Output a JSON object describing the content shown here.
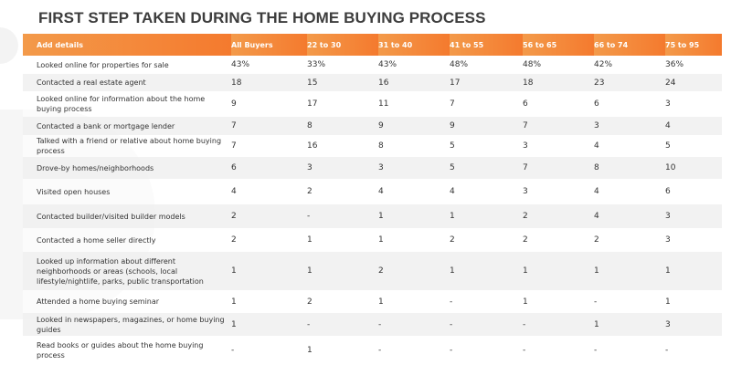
{
  "title": "FIRST STEP TAKEN DURING THE HOME BUYING PROCESS",
  "colors": {
    "header_start": "#f39a4a",
    "header_end": "#f47a2e",
    "stripe": "#f0f0f0"
  },
  "headers": [
    "Add details",
    "All Buyers",
    "22 to 30",
    "31 to 40",
    "41 to 55",
    "56 to 65",
    "66 to 74",
    "75 to 95"
  ],
  "rows": [
    {
      "label": "Looked online for properties for sale",
      "values": [
        "43%",
        "33%",
        "43%",
        "48%",
        "48%",
        "42%",
        "36%"
      ]
    },
    {
      "label": "Contacted a real estate agent",
      "values": [
        "18",
        "15",
        "16",
        "17",
        "18",
        "23",
        "24"
      ]
    },
    {
      "label": "Looked online for information about the home buying process",
      "values": [
        "9",
        "17",
        "11",
        "7",
        "6",
        "6",
        "3"
      ]
    },
    {
      "label": "Contacted a bank or mortgage lender",
      "values": [
        "7",
        "8",
        "9",
        "9",
        "7",
        "3",
        "4"
      ]
    },
    {
      "label": "Talked with a friend or relative about home buying process",
      "values": [
        "7",
        "16",
        "8",
        "5",
        "3",
        "4",
        "5"
      ]
    },
    {
      "label": "Drove-by homes/neighborhoods",
      "values": [
        "6",
        "3",
        "3",
        "5",
        "7",
        "8",
        "10"
      ]
    },
    {
      "label": "Visited open houses",
      "values": [
        "4",
        "2",
        "4",
        "4",
        "3",
        "4",
        "6"
      ]
    },
    {
      "label": "Contacted builder/visited builder models",
      "values": [
        "2",
        "-",
        "1",
        "1",
        "2",
        "4",
        "3"
      ]
    },
    {
      "label": "Contacted a home seller directly",
      "values": [
        "2",
        "1",
        "1",
        "2",
        "2",
        "2",
        "3"
      ]
    },
    {
      "label": "Looked up information about different neighborhoods or areas (schools, local lifestyle/nightlife, parks, public transportation",
      "values": [
        "1",
        "1",
        "2",
        "1",
        "1",
        "1",
        "1"
      ]
    },
    {
      "label": "Attended a home buying seminar",
      "values": [
        "1",
        "2",
        "1",
        "-",
        "1",
        "-",
        "1"
      ]
    },
    {
      "label": "Looked in newspapers, magazines, or home buying guides",
      "values": [
        "1",
        "-",
        "-",
        "-",
        "-",
        "1",
        "3"
      ]
    },
    {
      "label": "Read books or guides about the home buying process",
      "values": [
        "-",
        "1",
        "-",
        "-",
        "-",
        "-",
        "-"
      ]
    }
  ]
}
